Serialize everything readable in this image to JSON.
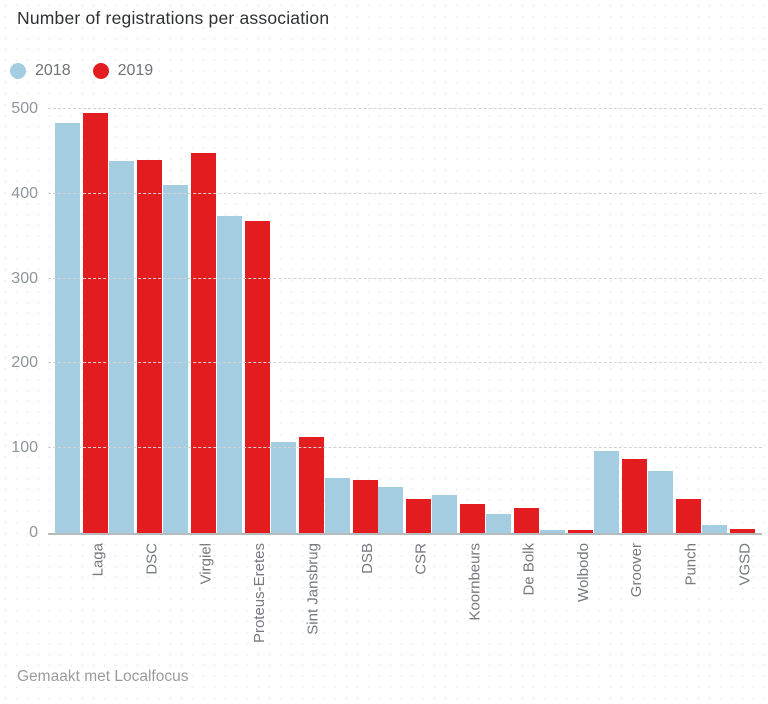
{
  "title": "Number of registrations per association",
  "footer": "Gemaakt met Localfocus",
  "colors": {
    "series_2018": "#a5cde2",
    "series_2019": "#e31c1f",
    "gridline": "#d2d2d2",
    "axis_line": "#b7babd",
    "tick_text": "#8f959a",
    "label_text": "#757a7e"
  },
  "chart_data": {
    "type": "bar",
    "title": "Number of registrations per association",
    "xlabel": "",
    "ylabel": "",
    "ylim": [
      0,
      500
    ],
    "yticks": [
      0,
      100,
      200,
      300,
      400,
      500
    ],
    "grid": "horizontal-dashed",
    "legend_position": "top-left",
    "categories": [
      "Laga",
      "DSC",
      "Virgiel",
      "Proteus-Eretes",
      "Sint Jansbrug",
      "DSB",
      "CSR",
      "Koornbeurs",
      "De Bolk",
      "Wolbodo",
      "Groover",
      "Punch",
      "VGSD"
    ],
    "series": [
      {
        "name": "2018",
        "color": "#a5cde2",
        "values": [
          483,
          439,
          410,
          374,
          107,
          65,
          54,
          45,
          23,
          3,
          97,
          73,
          9
        ]
      },
      {
        "name": "2019",
        "color": "#e31c1f",
        "values": [
          495,
          440,
          448,
          368,
          113,
          63,
          40,
          34,
          30,
          4,
          87,
          40,
          5
        ]
      }
    ]
  }
}
